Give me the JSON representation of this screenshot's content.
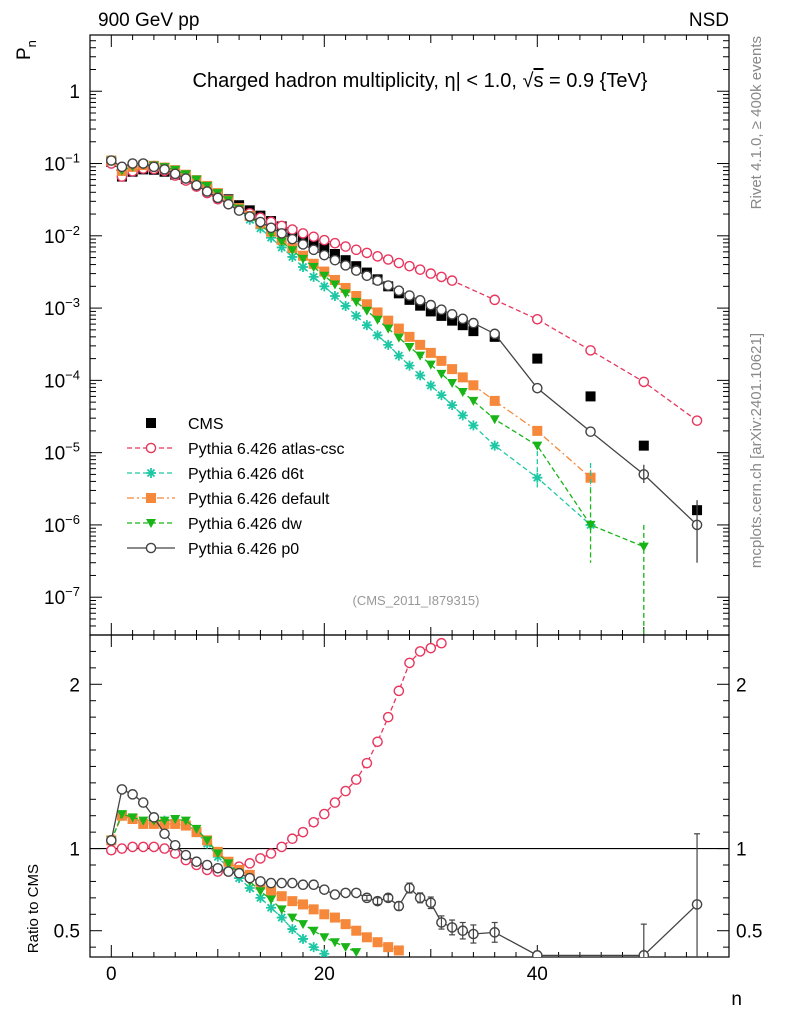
{
  "header": {
    "left": "900 GeV pp",
    "right": "NSD"
  },
  "side": {
    "top": "Rivet 4.1.0, ≥ 400k events",
    "bottom": "mcplots.cern.ch [arXiv:2401.10621]"
  },
  "chart_data": [
    {
      "type": "scatter",
      "title": "Charged hadron multiplicity, |η| < 1.0, √s = 0.9 {TeV}",
      "title_parts": {
        "main": "Charged hadron multiplicity, ",
        "eta": "η",
        "cut": "| < 1.0, ",
        "sqrt": "√",
        "s": "s",
        "energy": " = 0.9 {TeV}"
      },
      "watermark": "(CMS_2011_I879315)",
      "ylabel": "P",
      "ylabel_sub": "n",
      "yscale": "log",
      "xlim": [
        -2,
        58
      ],
      "ylim": [
        3e-08,
        6
      ],
      "yticks": [
        {
          "v": 1,
          "l": "1"
        },
        {
          "v": 0.1,
          "b": "10",
          "e": "−1"
        },
        {
          "v": 0.01,
          "b": "10",
          "e": "−2"
        },
        {
          "v": 0.001,
          "b": "10",
          "e": "−3"
        },
        {
          "v": 0.0001,
          "b": "10",
          "e": "−4"
        },
        {
          "v": 1e-05,
          "b": "10",
          "e": "−5"
        },
        {
          "v": 1e-06,
          "b": "10",
          "e": "−6"
        },
        {
          "v": 1e-07,
          "b": "10",
          "e": "−7"
        }
      ],
      "series": [
        {
          "name": "CMS",
          "color": "#000000",
          "marker": "square",
          "x": [
            0,
            1,
            2,
            3,
            4,
            5,
            6,
            7,
            8,
            9,
            10,
            11,
            12,
            13,
            14,
            15,
            16,
            17,
            18,
            19,
            20,
            21,
            22,
            23,
            24,
            25,
            26,
            27,
            28,
            29,
            30,
            31,
            32,
            33,
            34,
            36,
            40,
            45,
            50,
            55
          ],
          "y": [
            0.105,
            0.066,
            0.077,
            0.083,
            0.082,
            0.077,
            0.07,
            0.061,
            0.053,
            0.045,
            0.038,
            0.032,
            0.0265,
            0.0225,
            0.019,
            0.016,
            0.0135,
            0.0113,
            0.0095,
            0.008,
            0.0068,
            0.0056,
            0.0046,
            0.0038,
            0.0031,
            0.0025,
            0.002,
            0.0016,
            0.0013,
            0.00108,
            0.0009,
            0.00078,
            0.00067,
            0.00058,
            0.00048,
            0.0004,
            0.0002,
            6e-05,
            1.25e-05,
            1.6e-06
          ]
        },
        {
          "name": "Pythia 6.426 atlas-csc",
          "color": "#e8365e",
          "marker": "circle-open",
          "line": "dashed",
          "x": [
            0,
            1,
            2,
            3,
            4,
            5,
            6,
            7,
            8,
            9,
            10,
            11,
            12,
            13,
            14,
            15,
            16,
            17,
            18,
            19,
            20,
            21,
            22,
            23,
            24,
            25,
            26,
            27,
            28,
            29,
            30,
            31,
            32,
            36,
            40,
            45,
            50,
            55
          ],
          "y": [
            0.1,
            0.066,
            0.078,
            0.085,
            0.084,
            0.079,
            0.068,
            0.058,
            0.048,
            0.039,
            0.032,
            0.0275,
            0.0238,
            0.0205,
            0.0178,
            0.0156,
            0.0137,
            0.0122,
            0.0108,
            0.0097,
            0.0087,
            0.0079,
            0.0071,
            0.0064,
            0.0058,
            0.0052,
            0.0047,
            0.0042,
            0.0038,
            0.0034,
            0.003,
            0.0027,
            0.0024,
            0.0013,
            0.0007,
            0.00026,
            9.52e-05,
            2.77e-05
          ]
        },
        {
          "name": "Pythia 6.426 d6t",
          "color": "#1ec8a4",
          "marker": "star",
          "line": "dashed",
          "x": [
            0,
            1,
            2,
            3,
            4,
            5,
            6,
            7,
            8,
            9,
            10,
            11,
            12,
            13,
            14,
            15,
            16,
            17,
            18,
            19,
            20,
            21,
            22,
            23,
            24,
            25,
            26,
            27,
            28,
            29,
            30,
            31,
            32,
            33,
            34,
            36,
            40,
            45
          ],
          "y": [
            0.11,
            0.079,
            0.09,
            0.096,
            0.093,
            0.088,
            0.08,
            0.069,
            0.057,
            0.046,
            0.036,
            0.029,
            0.0223,
            0.0167,
            0.0127,
            0.0094,
            0.0069,
            0.0051,
            0.0037,
            0.0027,
            0.002,
            0.00147,
            0.00107,
            0.00078,
            0.00058,
            0.00042,
            0.00031,
            0.00022,
            0.00016,
            0.000117,
            8.5e-05,
            6.25e-05,
            4.54e-05,
            3.28e-05,
            2.38e-05,
            1.25e-05,
            4.5e-06,
            1e-06
          ]
        },
        {
          "name": "Pythia 6.426 default",
          "color": "#f5883a",
          "marker": "square",
          "line": "dashdot",
          "x": [
            0,
            1,
            2,
            3,
            4,
            5,
            6,
            7,
            8,
            9,
            10,
            11,
            12,
            13,
            14,
            15,
            16,
            17,
            18,
            19,
            20,
            21,
            22,
            23,
            24,
            25,
            26,
            27,
            28,
            29,
            30,
            31,
            32,
            33,
            34,
            36,
            40,
            45
          ],
          "y": [
            0.11,
            0.079,
            0.09,
            0.095,
            0.093,
            0.088,
            0.081,
            0.07,
            0.059,
            0.049,
            0.039,
            0.031,
            0.0242,
            0.0188,
            0.0147,
            0.0114,
            0.0088,
            0.0068,
            0.0053,
            0.0041,
            0.0032,
            0.00245,
            0.0019,
            0.00147,
            0.00113,
            0.00087,
            0.00067,
            0.00052,
            0.0004,
            0.00031,
            0.00024,
            0.000186,
            0.000143,
            0.00011,
            8.55e-05,
            5.2e-05,
            2e-05,
            4.5e-06
          ]
        },
        {
          "name": "Pythia 6.426 dw",
          "color": "#18b418",
          "marker": "triangle-down",
          "line": "dashed",
          "x": [
            0,
            1,
            2,
            3,
            4,
            5,
            6,
            7,
            8,
            9,
            10,
            11,
            12,
            13,
            14,
            15,
            16,
            17,
            18,
            19,
            20,
            21,
            22,
            23,
            24,
            25,
            26,
            27,
            28,
            29,
            30,
            31,
            32,
            33,
            34,
            36,
            40,
            45,
            50
          ],
          "y": [
            0.11,
            0.08,
            0.091,
            0.097,
            0.094,
            0.089,
            0.082,
            0.071,
            0.06,
            0.049,
            0.039,
            0.031,
            0.0238,
            0.0183,
            0.0141,
            0.0108,
            0.0083,
            0.0063,
            0.0048,
            0.0037,
            0.0028,
            0.00212,
            0.0016,
            0.00122,
            0.00092,
            0.00069,
            0.00052,
            0.00039,
            0.00029,
            0.00022,
            0.000165,
            0.000123,
            9.2e-05,
            6.9e-05,
            5.2e-05,
            2.9e-05,
            1.25e-05,
            1e-06,
            5e-07
          ]
        },
        {
          "name": "Pythia 6.426 p0",
          "color": "#444444",
          "marker": "circle-open",
          "line": "solid",
          "x": [
            0,
            1,
            2,
            3,
            4,
            5,
            6,
            7,
            8,
            9,
            10,
            11,
            12,
            13,
            14,
            15,
            16,
            17,
            18,
            19,
            20,
            21,
            22,
            23,
            24,
            25,
            26,
            27,
            28,
            29,
            30,
            31,
            32,
            33,
            34,
            36,
            40,
            45,
            50,
            55
          ],
          "y": [
            0.11,
            0.09,
            0.1,
            0.1,
            0.09,
            0.083,
            0.072,
            0.062,
            0.05,
            0.041,
            0.0335,
            0.0273,
            0.0223,
            0.0185,
            0.0155,
            0.0129,
            0.0108,
            0.009,
            0.0076,
            0.0064,
            0.0054,
            0.0046,
            0.0039,
            0.0033,
            0.0028,
            0.0024,
            0.00205,
            0.00174,
            0.00149,
            0.00128,
            0.0011,
            0.00095,
            0.00082,
            0.00071,
            0.00062,
            0.00044,
            7.8e-05,
            1.95e-05,
            5e-06,
            1e-06
          ]
        }
      ],
      "legend": {
        "position": "lower-left",
        "entries": [
          "CMS",
          "Pythia 6.426 atlas-csc",
          "Pythia 6.426 d6t",
          "Pythia 6.426 default",
          "Pythia 6.426 dw",
          "Pythia 6.426 p0"
        ]
      }
    },
    {
      "type": "line",
      "ylabel": "Ratio to CMS",
      "xlabel": "n",
      "xlim": [
        -2,
        58
      ],
      "ylim": [
        0.34,
        2.3
      ],
      "xticks": [
        0,
        20,
        40
      ],
      "yticks": [
        {
          "v": 0.5,
          "l": "0.5"
        },
        {
          "v": 1,
          "l": "1"
        },
        {
          "v": 2,
          "l": "2"
        }
      ],
      "reference": 1,
      "series": [
        {
          "name": "Pythia 6.426 atlas-csc",
          "color": "#e8365e",
          "marker": "circle-open",
          "line": "dashed",
          "x": [
            0,
            1,
            2,
            3,
            4,
            5,
            6,
            7,
            8,
            9,
            10,
            11,
            12,
            13,
            14,
            15,
            16,
            17,
            18,
            19,
            20,
            21,
            22,
            23,
            24,
            25,
            26,
            27,
            28,
            29,
            30,
            31
          ],
          "y": [
            0.99,
            1.0,
            1.01,
            1.01,
            1.01,
            1.0,
            0.97,
            0.93,
            0.9,
            0.87,
            0.86,
            0.86,
            0.89,
            0.91,
            0.94,
            0.97,
            1.01,
            1.06,
            1.1,
            1.16,
            1.21,
            1.28,
            1.35,
            1.42,
            1.52,
            1.65,
            1.8,
            1.96,
            2.13,
            2.2,
            2.22,
            2.25
          ]
        },
        {
          "name": "Pythia 6.426 d6t",
          "color": "#1ec8a4",
          "marker": "star",
          "line": "dashed",
          "x": [
            0,
            1,
            2,
            3,
            4,
            5,
            6,
            7,
            8,
            9,
            10,
            11,
            12,
            13,
            14,
            15,
            16,
            17,
            18,
            19,
            20
          ],
          "y": [
            1.05,
            1.2,
            1.18,
            1.16,
            1.16,
            1.17,
            1.17,
            1.15,
            1.1,
            1.03,
            0.95,
            0.88,
            0.82,
            0.76,
            0.7,
            0.64,
            0.58,
            0.51,
            0.45,
            0.4,
            0.36
          ]
        },
        {
          "name": "Pythia 6.426 default",
          "color": "#f5883a",
          "marker": "square",
          "line": "dashdot",
          "x": [
            0,
            1,
            2,
            3,
            4,
            5,
            6,
            7,
            8,
            9,
            10,
            11,
            12,
            13,
            14,
            15,
            16,
            17,
            18,
            19,
            20,
            21,
            22,
            23,
            24,
            25,
            26,
            27
          ],
          "y": [
            1.05,
            1.2,
            1.18,
            1.15,
            1.15,
            1.15,
            1.15,
            1.14,
            1.1,
            1.05,
            0.98,
            0.92,
            0.87,
            0.84,
            0.78,
            0.74,
            0.71,
            0.68,
            0.66,
            0.63,
            0.6,
            0.58,
            0.54,
            0.5,
            0.46,
            0.43,
            0.4,
            0.38
          ]
        },
        {
          "name": "Pythia 6.426 dw",
          "color": "#18b418",
          "marker": "triangle-down",
          "line": "dashed",
          "x": [
            0,
            1,
            2,
            3,
            4,
            5,
            6,
            7,
            8,
            9,
            10,
            11,
            12,
            13,
            14,
            15,
            16,
            17,
            18,
            19,
            20,
            21,
            22,
            23
          ],
          "y": [
            1.05,
            1.21,
            1.19,
            1.17,
            1.17,
            1.17,
            1.18,
            1.17,
            1.12,
            1.05,
            0.97,
            0.91,
            0.85,
            0.8,
            0.74,
            0.69,
            0.63,
            0.58,
            0.54,
            0.5,
            0.46,
            0.43,
            0.4,
            0.37
          ]
        },
        {
          "name": "Pythia 6.426 p0",
          "color": "#444444",
          "marker": "circle-open",
          "line": "solid",
          "x": [
            0,
            1,
            2,
            3,
            4,
            5,
            6,
            7,
            8,
            9,
            10,
            11,
            12,
            13,
            14,
            15,
            16,
            17,
            18,
            19,
            20,
            21,
            22,
            23,
            24,
            25,
            26,
            27,
            28,
            29,
            30,
            31,
            32,
            33,
            34,
            36,
            40,
            50,
            55
          ],
          "y": [
            1.05,
            1.36,
            1.33,
            1.28,
            1.19,
            1.09,
            1.02,
            0.96,
            0.92,
            0.9,
            0.88,
            0.86,
            0.85,
            0.82,
            0.8,
            0.79,
            0.79,
            0.79,
            0.78,
            0.78,
            0.75,
            0.72,
            0.73,
            0.73,
            0.7,
            0.68,
            0.7,
            0.65,
            0.76,
            0.7,
            0.67,
            0.55,
            0.52,
            0.5,
            0.48,
            0.49,
            0.35,
            0.35,
            0.66
          ]
        }
      ]
    }
  ]
}
